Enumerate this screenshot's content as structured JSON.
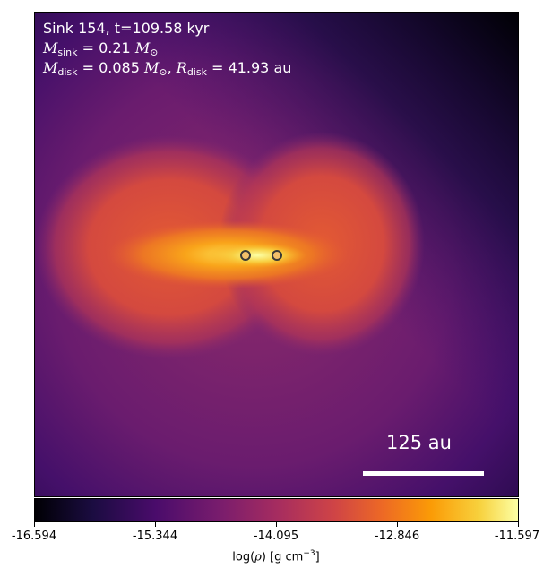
{
  "annotation": {
    "line1": "Sink 154, t=109.58 kyr",
    "msink_symbol": "M",
    "msink_sub": "sink",
    "msink_value": " = 0.21 ",
    "msun_symbol": "M",
    "msun_sub": "⊙",
    "mdisk_symbol": "M",
    "mdisk_sub": "disk",
    "mdisk_value": " = 0.085 ",
    "mdisk_sun_symbol": "M",
    "mdisk_sun_sub": "⊙",
    "comma": ",  ",
    "rdisk_symbol": "R",
    "rdisk_sub": "disk",
    "rdisk_value": " = 41.93 au"
  },
  "scale_bar": {
    "label": "125 au"
  },
  "colorbar": {
    "ticks": [
      "-16.594",
      "-15.344",
      "-14.095",
      "-12.846",
      "-11.597"
    ],
    "label_prefix": "log(",
    "label_rho": "ρ",
    "label_mid": ") [g cm",
    "label_exp": "−3",
    "label_suffix": "]",
    "colormap": "inferno"
  }
}
